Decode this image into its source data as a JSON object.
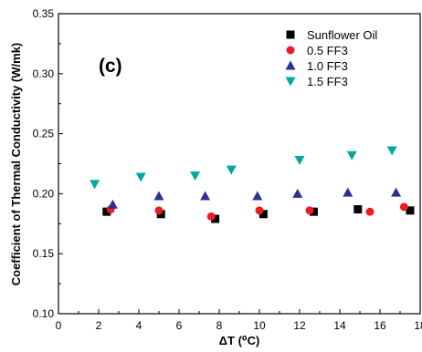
{
  "chart_data": {
    "type": "scatter",
    "panel_label": "(c)",
    "xlabel": "ΔT (⁰C)",
    "ylabel": "Coefficient of Thermal Conductivity (W/mk)",
    "xlim": [
      0,
      18
    ],
    "ylim": [
      0.1,
      0.35
    ],
    "x_ticks": [
      0,
      2,
      4,
      6,
      8,
      10,
      12,
      14,
      16,
      18
    ],
    "x_tick_labels": [
      "0",
      "2",
      "4",
      "6",
      "8",
      "10",
      "12",
      "14",
      "16",
      "18"
    ],
    "y_ticks": [
      0.1,
      0.15,
      0.2,
      0.25,
      0.3,
      0.35
    ],
    "y_tick_labels": [
      "0.10",
      "0.15",
      "0.20",
      "0.25",
      "0.30",
      "0.35"
    ],
    "grid": false,
    "legend_position": "top-right",
    "series": [
      {
        "name": "Sunflower Oil",
        "marker": "square",
        "color": "#000000",
        "points": [
          [
            2.4,
            0.185
          ],
          [
            5.1,
            0.183
          ],
          [
            7.8,
            0.179
          ],
          [
            10.2,
            0.183
          ],
          [
            12.7,
            0.185
          ],
          [
            14.9,
            0.187
          ],
          [
            17.5,
            0.186
          ]
        ]
      },
      {
        "name": "0.5 FF3",
        "marker": "circle",
        "color": "#ee1c24",
        "points": [
          [
            2.6,
            0.187
          ],
          [
            5.0,
            0.186
          ],
          [
            7.6,
            0.181
          ],
          [
            10.0,
            0.186
          ],
          [
            12.5,
            0.186
          ],
          [
            15.5,
            0.185
          ],
          [
            17.2,
            0.189
          ]
        ]
      },
      {
        "name": "1.0 FF3",
        "marker": "triangle-up",
        "color": "#2e3192",
        "points": [
          [
            2.7,
            0.191
          ],
          [
            5.0,
            0.198
          ],
          [
            7.3,
            0.198
          ],
          [
            9.9,
            0.198
          ],
          [
            11.9,
            0.2
          ],
          [
            14.4,
            0.201
          ],
          [
            16.8,
            0.201
          ]
        ]
      },
      {
        "name": "1.5 FF3",
        "marker": "triangle-down",
        "color": "#00a99d",
        "points": [
          [
            1.8,
            0.208
          ],
          [
            4.1,
            0.214
          ],
          [
            6.8,
            0.215
          ],
          [
            8.6,
            0.22
          ],
          [
            12.0,
            0.228
          ],
          [
            14.6,
            0.232
          ],
          [
            16.6,
            0.236
          ]
        ]
      }
    ]
  }
}
